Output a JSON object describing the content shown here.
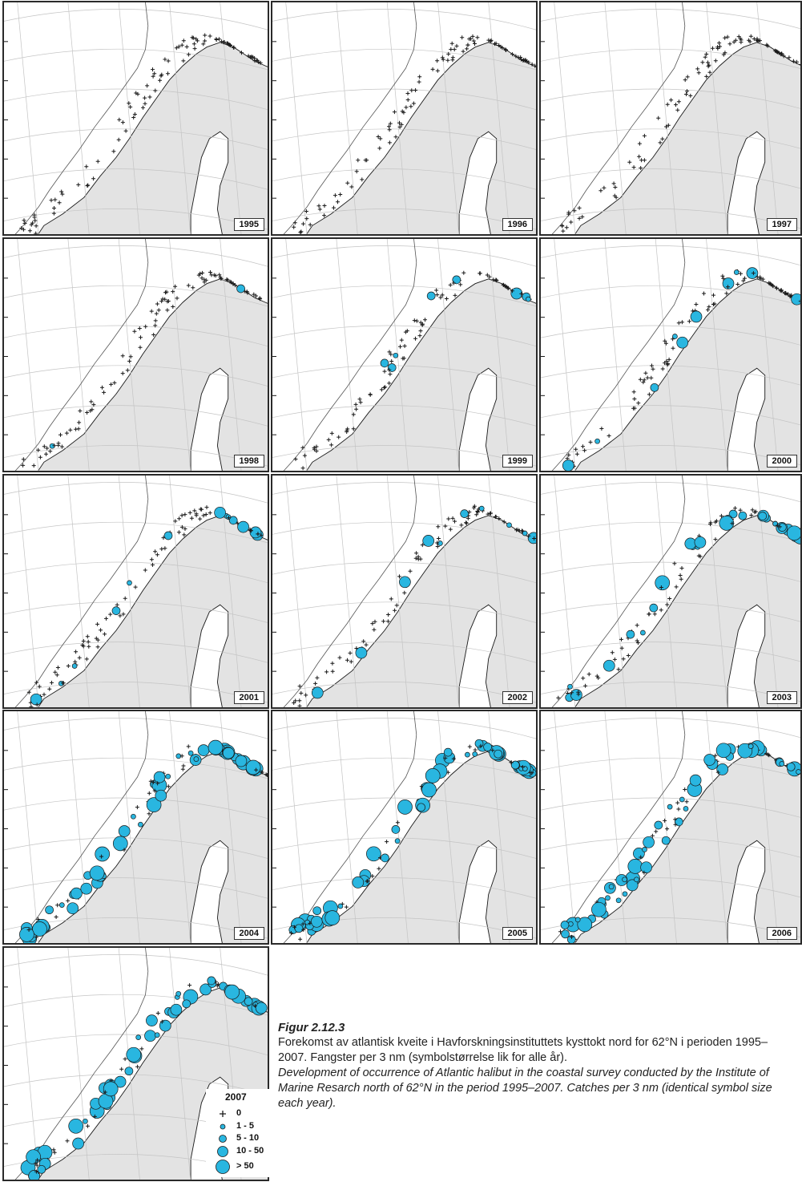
{
  "panels": [
    {
      "year": "1995",
      "level": 0
    },
    {
      "year": "1996",
      "level": 0
    },
    {
      "year": "1997",
      "level": 0
    },
    {
      "year": "1998",
      "level": 1
    },
    {
      "year": "1999",
      "level": 2
    },
    {
      "year": "2000",
      "level": 2
    },
    {
      "year": "2001",
      "level": 2
    },
    {
      "year": "2002",
      "level": 2
    },
    {
      "year": "2003",
      "level": 3
    },
    {
      "year": "2004",
      "level": 4
    },
    {
      "year": "2005",
      "level": 4
    },
    {
      "year": "2006",
      "level": 4
    },
    {
      "year": "2007",
      "level": 4
    }
  ],
  "legend": {
    "title": "2007",
    "items": [
      {
        "label": "0",
        "symbol": "plus"
      },
      {
        "label": "1 - 5",
        "symbol": "circle-1"
      },
      {
        "label": "5 - 10",
        "symbol": "circle-2"
      },
      {
        "label": "10 - 50",
        "symbol": "circle-3"
      },
      {
        "label": "> 50",
        "symbol": "circle-4"
      }
    ]
  },
  "colors": {
    "land": "#e3e3e3",
    "sea": "#ffffff",
    "catch_fill": "#29b6e0",
    "outline": "#1a1a1a",
    "graticule": "#c4c4c4"
  },
  "caption": {
    "title": "Figur 2.12.3",
    "norwegian": "Forekomst av atlantisk kveite i Havforskningsinstituttets kysttokt nord for 62°N i perioden 1995–2007. Fangster per 3 nm (symbol­størrelse lik for alle år).",
    "english": "Development of occurrence of Atlantic halibut in the coastal survey conducted by the Institute of Marine Resarch north of 62°N in the period 1995–2007. Catches per 3 nm (identical symbol size each year)."
  }
}
